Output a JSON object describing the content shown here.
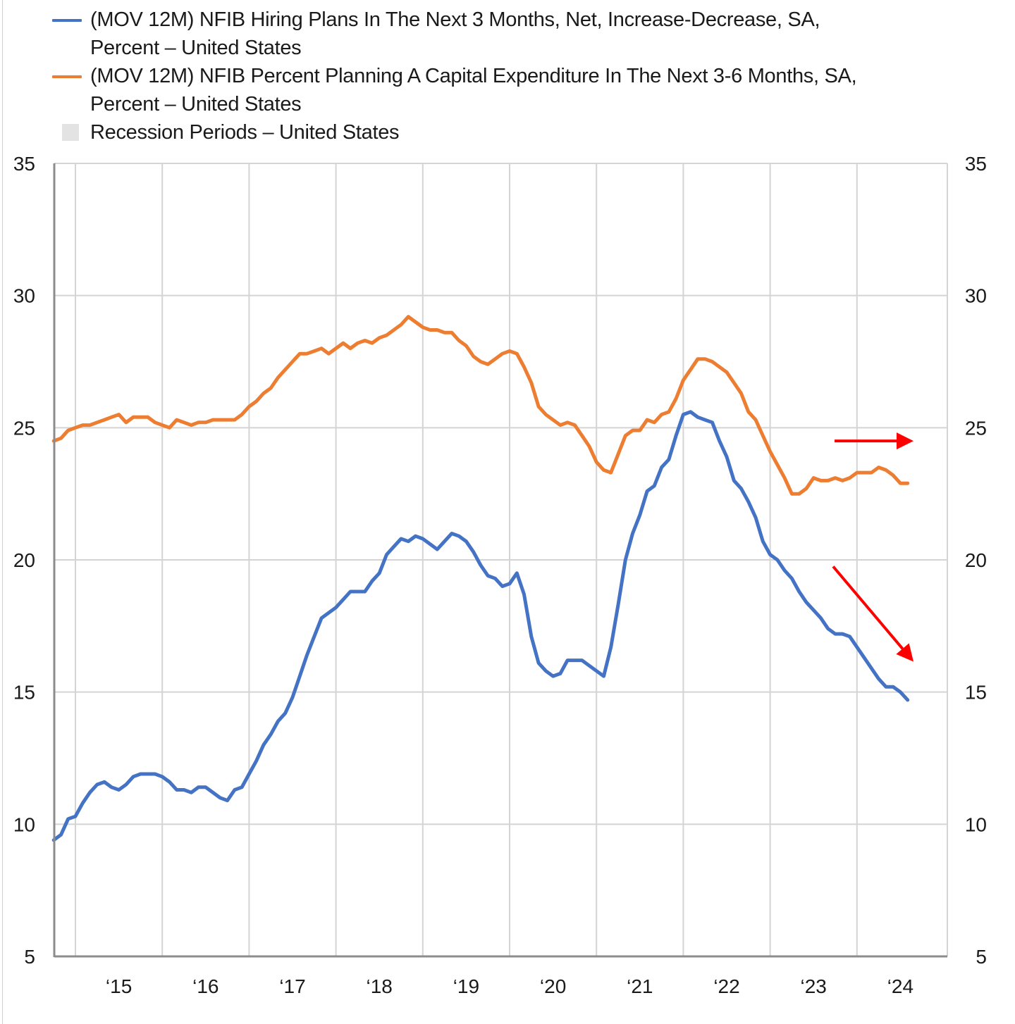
{
  "chart_data": {
    "type": "line",
    "title": "",
    "xlabel": "",
    "ylabel_left": "",
    "ylabel_right": "",
    "ylim": [
      5,
      35
    ],
    "yticks": [
      5,
      10,
      15,
      20,
      25,
      30,
      35
    ],
    "ytick_labels": [
      "5",
      "10",
      "15",
      "20",
      "25",
      "30",
      "35"
    ],
    "right_axis": {
      "ylim": [
        5,
        35
      ],
      "ytick_labels": [
        "5",
        "10",
        "15",
        "20",
        "25",
        "30",
        "35"
      ]
    },
    "xlim": [
      "2014-10",
      "2024-12"
    ],
    "x_gridlines": [
      "2015-01",
      "2016-01",
      "2017-01",
      "2018-01",
      "2019-01",
      "2020-01",
      "2021-01",
      "2022-01",
      "2023-01",
      "2024-01"
    ],
    "xtick_labels": [
      "‘15",
      "‘16",
      "‘17",
      "‘18",
      "‘19",
      "‘20",
      "‘21",
      "‘22",
      "‘23",
      "‘24"
    ],
    "grid": true,
    "legend_position": "top",
    "x_start": "2014-10",
    "x_frequency": "monthly",
    "series": [
      {
        "name": "(MOV 12M) NFIB Hiring Plans In The Next 3 Months, Net, Increase-Decrease, SA, Percent – United States",
        "color": "#4472c4",
        "values": [
          9.4,
          9.6,
          10.2,
          10.3,
          10.8,
          11.2,
          11.5,
          11.6,
          11.4,
          11.3,
          11.5,
          11.8,
          11.9,
          11.9,
          11.9,
          11.8,
          11.6,
          11.3,
          11.3,
          11.2,
          11.4,
          11.4,
          11.2,
          11.0,
          10.9,
          11.3,
          11.4,
          11.9,
          12.4,
          13.0,
          13.4,
          13.9,
          14.2,
          14.8,
          15.6,
          16.4,
          17.1,
          17.8,
          18.0,
          18.2,
          18.5,
          18.8,
          18.8,
          18.8,
          19.2,
          19.5,
          20.2,
          20.5,
          20.8,
          20.7,
          20.9,
          20.8,
          20.6,
          20.4,
          20.7,
          21.0,
          20.9,
          20.7,
          20.3,
          19.8,
          19.4,
          19.3,
          19.0,
          19.1,
          19.5,
          18.7,
          17.1,
          16.1,
          15.8,
          15.6,
          15.7,
          16.2,
          16.2,
          16.2,
          16.0,
          15.8,
          15.6,
          16.7,
          18.3,
          20.0,
          21.0,
          21.7,
          22.6,
          22.8,
          23.5,
          23.8,
          24.7,
          25.5,
          25.6,
          25.4,
          25.3,
          25.2,
          24.5,
          23.9,
          23.0,
          22.7,
          22.2,
          21.6,
          20.7,
          20.2,
          20.0,
          19.6,
          19.3,
          18.8,
          18.4,
          18.1,
          17.8,
          17.4,
          17.2,
          17.2,
          17.1,
          16.7,
          16.3,
          15.9,
          15.5,
          15.2,
          15.2,
          15.0,
          14.7
        ]
      },
      {
        "name": "(MOV 12M) NFIB Percent Planning A Capital Expenditure In The Next 3-6 Months, SA, Percent – United States",
        "color": "#ed7d31",
        "values": [
          24.5,
          24.6,
          24.9,
          25.0,
          25.1,
          25.1,
          25.2,
          25.3,
          25.4,
          25.5,
          25.2,
          25.4,
          25.4,
          25.4,
          25.2,
          25.1,
          25.0,
          25.3,
          25.2,
          25.1,
          25.2,
          25.2,
          25.3,
          25.3,
          25.3,
          25.3,
          25.5,
          25.8,
          26.0,
          26.3,
          26.5,
          26.9,
          27.2,
          27.5,
          27.8,
          27.8,
          27.9,
          28.0,
          27.8,
          28.0,
          28.2,
          28.0,
          28.2,
          28.3,
          28.2,
          28.4,
          28.5,
          28.7,
          28.9,
          29.2,
          29.0,
          28.8,
          28.7,
          28.7,
          28.6,
          28.6,
          28.3,
          28.1,
          27.7,
          27.5,
          27.4,
          27.6,
          27.8,
          27.9,
          27.8,
          27.3,
          26.7,
          25.8,
          25.5,
          25.3,
          25.1,
          25.2,
          25.1,
          24.7,
          24.3,
          23.7,
          23.4,
          23.3,
          24.0,
          24.7,
          24.9,
          24.9,
          25.3,
          25.2,
          25.5,
          25.6,
          26.1,
          26.8,
          27.2,
          27.6,
          27.6,
          27.5,
          27.3,
          27.1,
          26.7,
          26.3,
          25.6,
          25.3,
          24.7,
          24.1,
          23.6,
          23.1,
          22.5,
          22.5,
          22.7,
          23.1,
          23.0,
          23.0,
          23.1,
          23.0,
          23.1,
          23.3,
          23.3,
          23.3,
          23.5,
          23.4,
          23.2,
          22.9,
          22.9
        ]
      }
    ],
    "recession_periods": [],
    "annotations": [
      {
        "type": "arrow",
        "direction": "right",
        "color": "#ff0000",
        "target_series": "capex"
      },
      {
        "type": "arrow",
        "direction": "down-right",
        "color": "#ff0000",
        "target_series": "hiring"
      }
    ]
  },
  "legend": {
    "items": [
      {
        "label": "(MOV 12M) NFIB Hiring Plans In The Next 3 Months, Net, Increase-Decrease, SA,\nPercent – United States",
        "swatch": "line",
        "color": "#4472c4"
      },
      {
        "label": "(MOV 12M) NFIB Percent Planning A Capital Expenditure In The Next 3-6 Months, SA,\nPercent – United States",
        "swatch": "line",
        "color": "#ed7d31"
      },
      {
        "label": "Recession Periods – United States",
        "swatch": "box",
        "color": "#e3e3e3"
      }
    ]
  }
}
